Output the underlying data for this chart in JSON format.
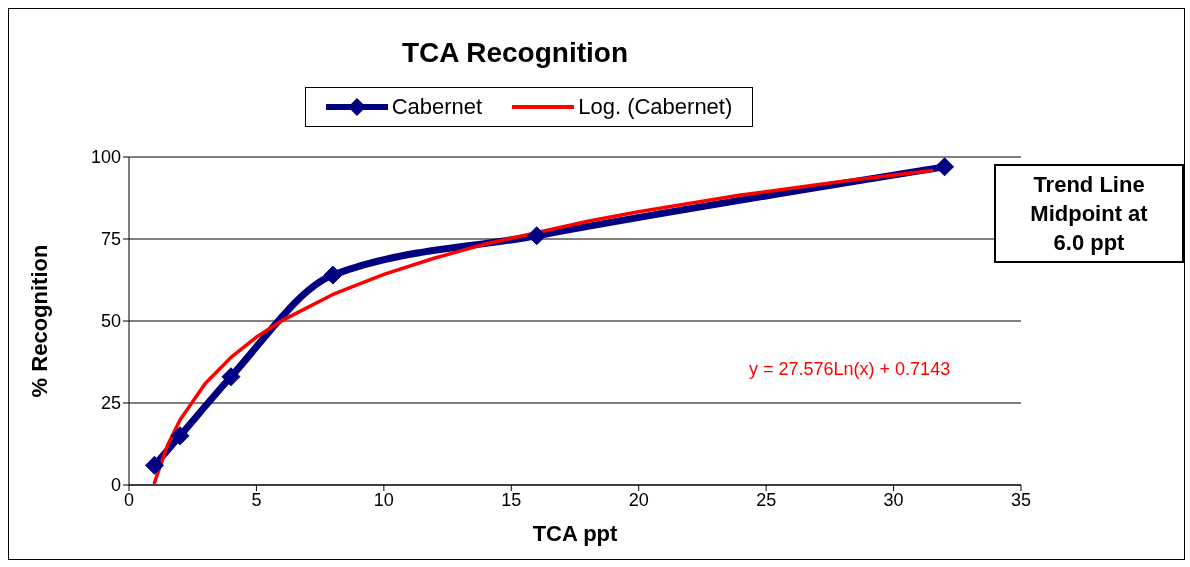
{
  "chart_data": {
    "type": "line",
    "title": "TCA Recognition",
    "xlabel": "TCA ppt",
    "ylabel": "% Recognition",
    "xlim": [
      0,
      35
    ],
    "xticks": [
      0,
      5,
      10,
      15,
      20,
      25,
      30,
      35
    ],
    "ylim": [
      0,
      100
    ],
    "yticks": [
      0,
      25,
      50,
      75,
      100
    ],
    "grid": "y",
    "legend": "top",
    "line_style": "solid",
    "series": [
      {
        "name": "Cabernet",
        "color": "#000080",
        "marker": "diamond",
        "x": [
          1,
          2,
          4,
          8,
          16,
          32
        ],
        "values": [
          6,
          15,
          33,
          64,
          76,
          97
        ]
      },
      {
        "name": "Log. (Cabernet)",
        "color": "#ff0000",
        "marker": "none",
        "x": [
          1,
          1.5,
          2,
          3,
          4,
          5,
          6,
          8,
          10,
          12,
          14,
          18,
          20,
          24,
          28,
          31.5
        ],
        "values": [
          0.7,
          11.9,
          19.8,
          31,
          38.9,
          45.1,
          50.1,
          58.1,
          64.2,
          69.2,
          73.5,
          80.4,
          83.3,
          88.4,
          92.6,
          95.9
        ]
      }
    ],
    "annotations": [
      "y = 27.576Ln(x) + 0.7143",
      "Trend Line Midpoint at 6.0 ppt"
    ]
  }
}
